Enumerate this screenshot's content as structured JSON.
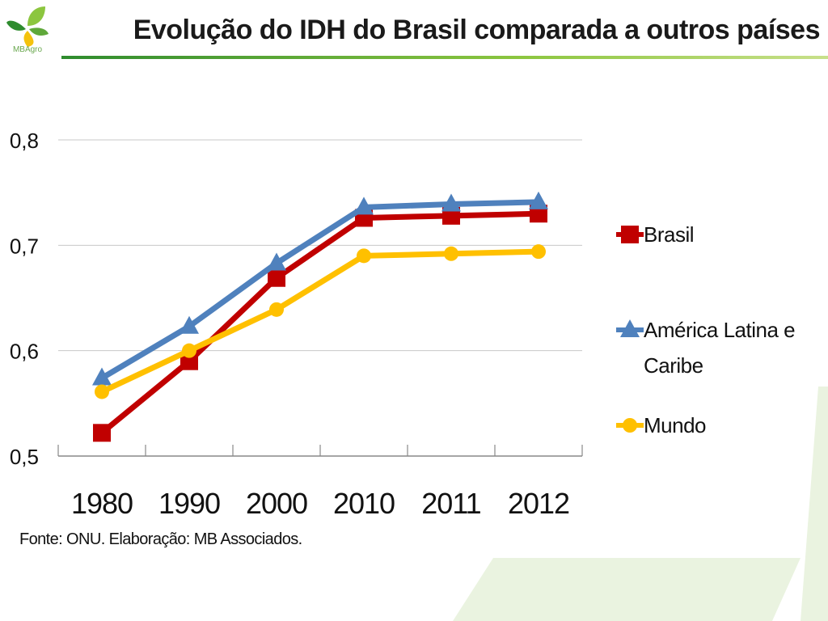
{
  "header": {
    "title": "Evolução do IDH do Brasil comparada a outros países",
    "logo_text": "MBAgro"
  },
  "footer": {
    "source": "Fonte: ONU. Elaboração: MB Associados."
  },
  "colors": {
    "brasil": "#c00000",
    "america_latina": "#4f81bd",
    "mundo": "#ffc000",
    "accent_green": "#6aa84f"
  },
  "chart_data": {
    "type": "line",
    "title": "",
    "xlabel": "",
    "ylabel": "",
    "categories": [
      "1980",
      "1990",
      "2000",
      "2010",
      "2011",
      "2012"
    ],
    "ylim": [
      0.5,
      0.8
    ],
    "yticks": [
      "0,5",
      "0,6",
      "0,7",
      "0,8"
    ],
    "grid": true,
    "legend": "right",
    "series": [
      {
        "name": "Brasil",
        "marker": "square",
        "color": "#c00000",
        "values": [
          0.522,
          0.59,
          0.669,
          0.726,
          0.728,
          0.73
        ]
      },
      {
        "name": "América Latina e Caribe",
        "marker": "triangle",
        "color": "#4f81bd",
        "values": [
          0.574,
          0.623,
          0.683,
          0.736,
          0.739,
          0.741
        ]
      },
      {
        "name": "Mundo",
        "marker": "circle",
        "color": "#ffc000",
        "values": [
          0.561,
          0.6,
          0.639,
          0.69,
          0.692,
          0.694
        ]
      }
    ]
  }
}
